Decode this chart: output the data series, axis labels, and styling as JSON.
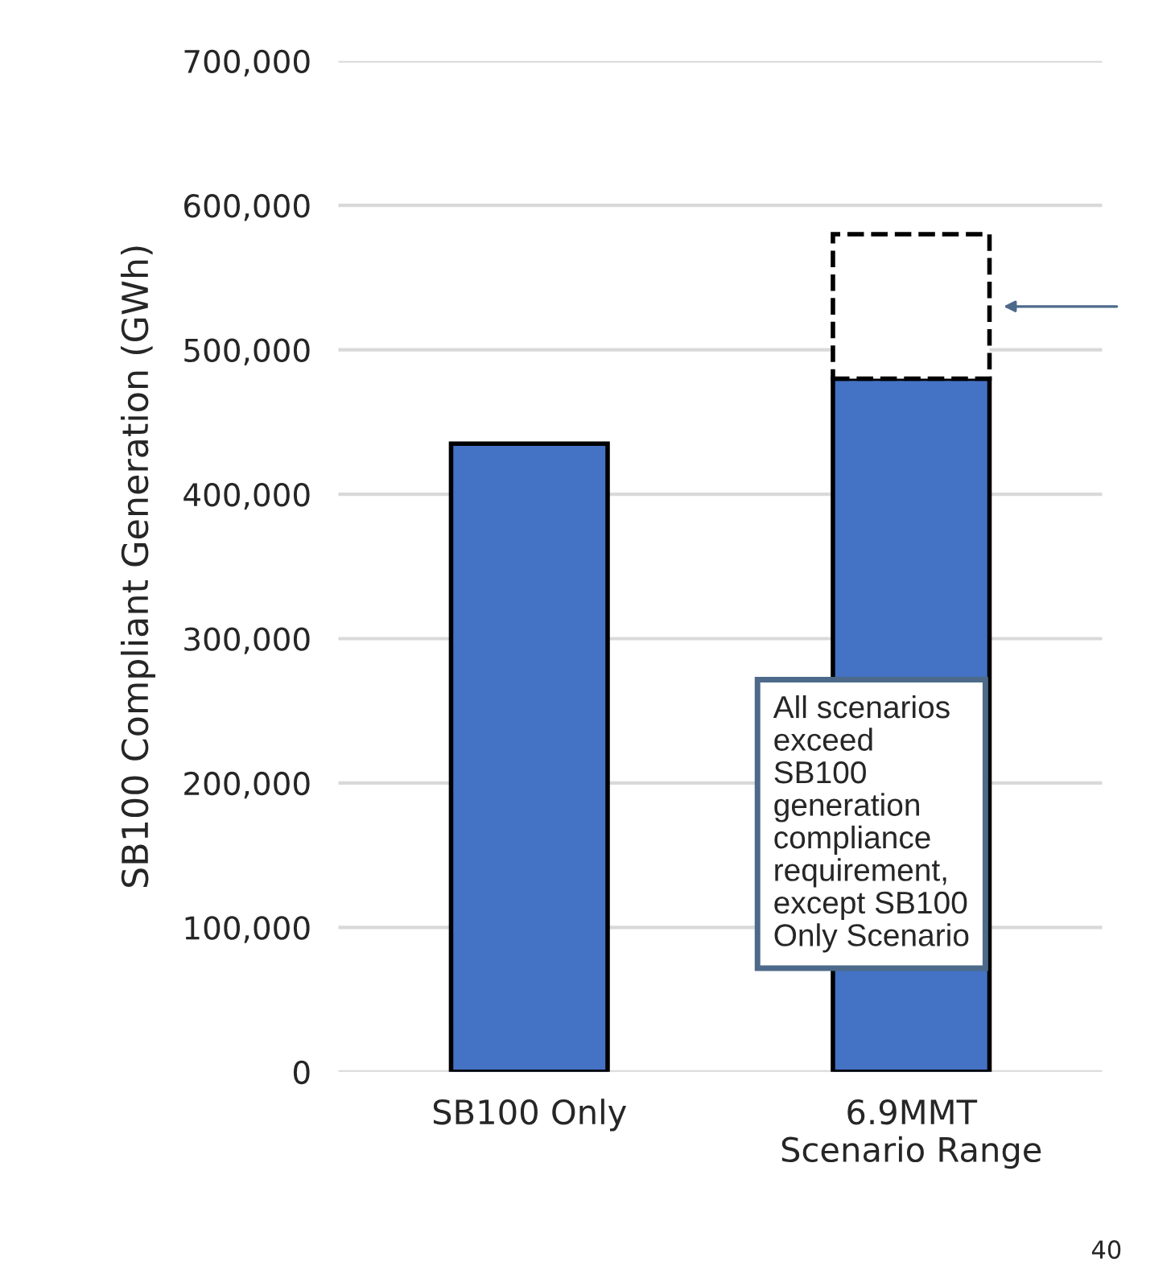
{
  "chart_data": {
    "type": "bar",
    "ylabel": "SB100 Compliant Generation (GWh)",
    "categories": [
      "SB100 Only",
      "6.9MMT\nScenario Range"
    ],
    "stacked": true,
    "series": [
      {
        "color": "#4472c4",
        "values": [
          435000,
          480000
        ],
        "line_style": "solid"
      },
      {
        "color": "#ffffff",
        "values": [
          null,
          100000
        ],
        "line_style": "dashed"
      }
    ],
    "ylim": [
      0,
      700000
    ],
    "yticks": [
      {
        "value": 0,
        "label": "0"
      },
      {
        "value": 100000,
        "label": "100,000"
      },
      {
        "value": 200000,
        "label": "200,000"
      },
      {
        "value": 300000,
        "label": "300,000"
      },
      {
        "value": 400000,
        "label": "400,000"
      },
      {
        "value": 500000,
        "label": "500,000"
      },
      {
        "value": 600000,
        "label": "600,000"
      },
      {
        "value": 700000,
        "label": "700,000"
      }
    ],
    "grid": "y",
    "legend": false,
    "annotations": [
      "All scenarios\nexceed\nSB100\ngeneration\ncompliance\nrequirement,\nexcept SB100\nOnly Scenario",
      "40"
    ]
  }
}
